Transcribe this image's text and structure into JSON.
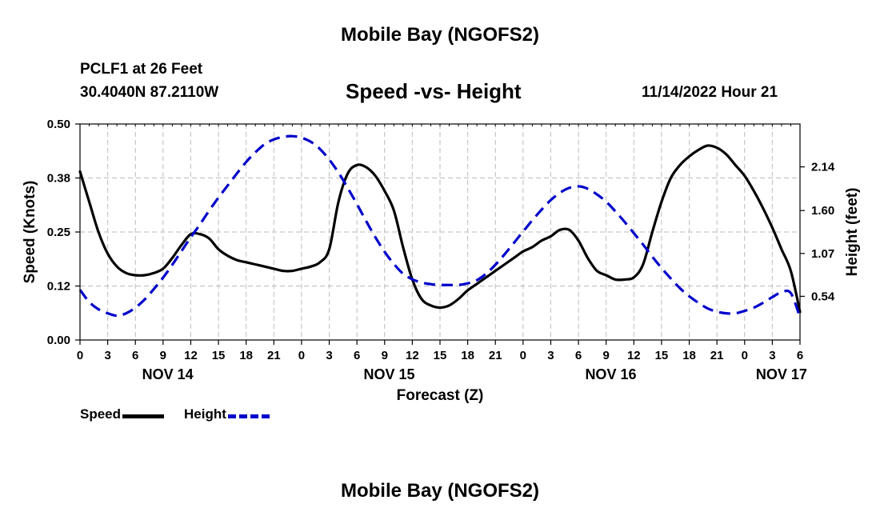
{
  "header": {
    "title": "Mobile Bay (NGOFS2)",
    "station": "PCLF1 at 26 Feet",
    "coords": "30.4040N  87.2110W",
    "subtitle": "Speed -vs- Height",
    "datetime": "11/14/2022 Hour 21"
  },
  "footer": {
    "title": "Mobile Bay (NGOFS2)"
  },
  "legend": {
    "speed_label": "Speed",
    "height_label": "Height"
  },
  "colors": {
    "speed": "#000000",
    "height": "#0000cc",
    "grid": "#bbbbbb"
  },
  "chart_data": {
    "type": "line",
    "title": "Speed -vs- Height",
    "xlabel": "Forecast (Z)",
    "ylabel_left": "Speed (Knots)",
    "ylabel_right": "Height (feet)",
    "x_unit": "hours since NOV 14 00Z",
    "xlim": [
      0,
      78
    ],
    "ylim_left": [
      0,
      0.5
    ],
    "ylim_right": [
      0,
      2.67
    ],
    "grid": true,
    "x_ticks": [
      0,
      3,
      6,
      9,
      12,
      15,
      18,
      21,
      24,
      27,
      30,
      33,
      36,
      39,
      42,
      45,
      48,
      51,
      54,
      57,
      60,
      63,
      66,
      69,
      72,
      75,
      78
    ],
    "x_tick_labels": [
      "0",
      "3",
      "6",
      "9",
      "12",
      "15",
      "18",
      "21",
      "0",
      "3",
      "6",
      "9",
      "12",
      "15",
      "18",
      "21",
      "0",
      "3",
      "6",
      "9",
      "12",
      "15",
      "18",
      "21",
      "0",
      "3",
      "6"
    ],
    "date_labels": [
      {
        "x": 9.5,
        "label": "NOV 14"
      },
      {
        "x": 33.5,
        "label": "NOV 15"
      },
      {
        "x": 57.5,
        "label": "NOV 16"
      },
      {
        "x": 76,
        "label": "NOV 17"
      }
    ],
    "y_left_ticks": [
      0,
      0.125,
      0.25,
      0.375,
      0.5
    ],
    "y_left_tick_labels": [
      "0.00",
      "0.12",
      "0.25",
      "0.38",
      "0.50"
    ],
    "y_right_ticks": [
      0.54,
      1.07,
      1.6,
      2.14
    ],
    "y_right_tick_labels": [
      "0.54",
      "1.07",
      "1.60",
      "2.14"
    ],
    "series": [
      {
        "name": "Speed",
        "axis": "left",
        "style": "solid",
        "x": [
          0,
          1,
          2,
          3,
          4,
          5,
          6,
          7,
          8,
          9,
          10,
          11,
          12,
          13,
          14,
          15,
          16,
          17,
          18,
          19,
          20,
          21,
          22,
          23,
          24,
          25,
          26,
          27,
          28,
          29,
          30,
          31,
          32,
          33,
          34,
          35,
          36,
          37,
          38,
          39,
          40,
          41,
          42,
          43,
          44,
          45,
          46,
          47,
          48,
          49,
          50,
          51,
          52,
          53,
          54,
          55,
          56,
          57,
          58,
          59,
          60,
          61,
          62,
          63,
          64,
          65,
          66,
          67,
          68,
          69,
          70,
          71,
          72,
          73,
          74,
          75,
          76,
          77,
          78
        ],
        "values": [
          0.39,
          0.32,
          0.25,
          0.2,
          0.17,
          0.155,
          0.15,
          0.15,
          0.155,
          0.165,
          0.19,
          0.22,
          0.245,
          0.245,
          0.235,
          0.21,
          0.195,
          0.185,
          0.18,
          0.175,
          0.17,
          0.165,
          0.16,
          0.16,
          0.165,
          0.17,
          0.18,
          0.21,
          0.32,
          0.385,
          0.405,
          0.4,
          0.38,
          0.345,
          0.3,
          0.215,
          0.14,
          0.095,
          0.08,
          0.075,
          0.08,
          0.095,
          0.115,
          0.13,
          0.145,
          0.16,
          0.175,
          0.19,
          0.205,
          0.215,
          0.23,
          0.24,
          0.255,
          0.255,
          0.23,
          0.19,
          0.16,
          0.15,
          0.14,
          0.14,
          0.145,
          0.175,
          0.25,
          0.32,
          0.375,
          0.405,
          0.425,
          0.44,
          0.45,
          0.445,
          0.43,
          0.405,
          0.38,
          0.345,
          0.305,
          0.26,
          0.21,
          0.16,
          0.065
        ]
      },
      {
        "name": "Height",
        "axis": "right",
        "style": "dashed",
        "x": [
          0,
          1,
          2,
          3,
          4,
          5,
          6,
          7,
          8,
          9,
          10,
          11,
          12,
          13,
          14,
          15,
          16,
          17,
          18,
          19,
          20,
          21,
          22,
          23,
          24,
          25,
          26,
          27,
          28,
          29,
          30,
          31,
          32,
          33,
          34,
          35,
          36,
          37,
          38,
          39,
          40,
          41,
          42,
          43,
          44,
          45,
          46,
          47,
          48,
          49,
          50,
          51,
          52,
          53,
          54,
          55,
          56,
          57,
          58,
          59,
          60,
          61,
          62,
          63,
          64,
          65,
          66,
          67,
          68,
          69,
          70,
          71,
          72,
          73,
          74,
          75,
          76,
          77,
          78
        ],
        "values": [
          0.62,
          0.47,
          0.38,
          0.33,
          0.3,
          0.33,
          0.4,
          0.5,
          0.63,
          0.77,
          0.93,
          1.1,
          1.27,
          1.43,
          1.6,
          1.76,
          1.91,
          2.06,
          2.2,
          2.32,
          2.42,
          2.48,
          2.51,
          2.52,
          2.5,
          2.45,
          2.36,
          2.23,
          2.07,
          1.88,
          1.68,
          1.47,
          1.27,
          1.09,
          0.94,
          0.82,
          0.75,
          0.71,
          0.69,
          0.68,
          0.68,
          0.68,
          0.7,
          0.74,
          0.82,
          0.93,
          1.06,
          1.2,
          1.34,
          1.48,
          1.61,
          1.73,
          1.82,
          1.88,
          1.9,
          1.87,
          1.8,
          1.71,
          1.59,
          1.46,
          1.32,
          1.18,
          1.03,
          0.89,
          0.76,
          0.64,
          0.54,
          0.46,
          0.39,
          0.35,
          0.33,
          0.33,
          0.36,
          0.4,
          0.46,
          0.53,
          0.59,
          0.58,
          0.28
        ]
      }
    ]
  }
}
